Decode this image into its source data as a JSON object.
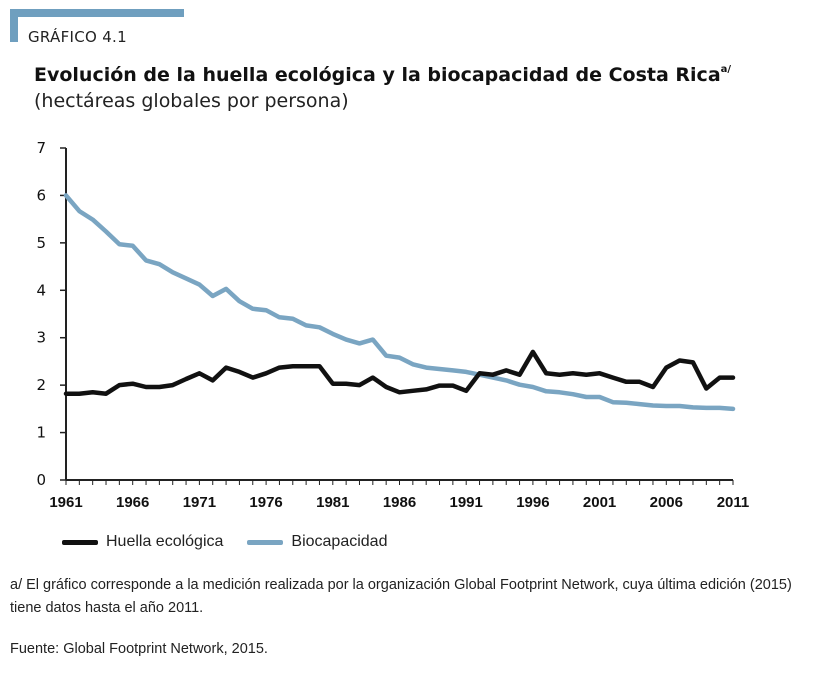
{
  "header": {
    "label": "GRÁFICO 4.1",
    "title": "Evolución de la huella ecológica y la biocapacidad de Costa Rica",
    "title_note": "a/",
    "subtitle": "(hectáreas globales por persona)"
  },
  "colors": {
    "accent": "#6f9fbf",
    "huella": "#111111",
    "biocapacidad": "#7aa5c2"
  },
  "chart_data": {
    "type": "line",
    "x": [
      1961,
      1962,
      1963,
      1964,
      1965,
      1966,
      1967,
      1968,
      1969,
      1970,
      1971,
      1972,
      1973,
      1974,
      1975,
      1976,
      1977,
      1978,
      1979,
      1980,
      1981,
      1982,
      1983,
      1984,
      1985,
      1986,
      1987,
      1988,
      1989,
      1990,
      1991,
      1992,
      1993,
      1994,
      1995,
      1996,
      1997,
      1998,
      1999,
      2000,
      2001,
      2002,
      2003,
      2004,
      2005,
      2006,
      2007,
      2008,
      2009,
      2010,
      2011
    ],
    "series": [
      {
        "name": "Huella ecológica",
        "values": [
          1.82,
          1.82,
          1.85,
          1.82,
          2.0,
          2.03,
          1.96,
          1.96,
          2.0,
          2.13,
          2.25,
          2.1,
          2.37,
          2.28,
          2.16,
          2.25,
          2.37,
          2.4,
          2.4,
          2.4,
          2.03,
          2.03,
          2.0,
          2.16,
          1.96,
          1.85,
          1.88,
          1.91,
          1.99,
          1.99,
          1.88,
          2.25,
          2.22,
          2.31,
          2.22,
          2.7,
          2.25,
          2.22,
          2.25,
          2.22,
          2.25,
          2.16,
          2.07,
          2.07,
          1.96,
          2.37,
          2.52,
          2.48,
          1.93,
          2.16,
          2.16
        ]
      },
      {
        "name": "Biocapacidad",
        "values": [
          6.0,
          5.67,
          5.49,
          5.24,
          4.97,
          4.94,
          4.63,
          4.55,
          4.38,
          4.25,
          4.12,
          3.88,
          4.03,
          3.77,
          3.61,
          3.58,
          3.43,
          3.4,
          3.26,
          3.22,
          3.08,
          2.96,
          2.88,
          2.96,
          2.62,
          2.58,
          2.44,
          2.37,
          2.34,
          2.31,
          2.28,
          2.22,
          2.16,
          2.1,
          2.01,
          1.96,
          1.87,
          1.85,
          1.81,
          1.75,
          1.75,
          1.64,
          1.63,
          1.6,
          1.57,
          1.56,
          1.56,
          1.53,
          1.52,
          1.52,
          1.5
        ]
      }
    ],
    "x_ticks": [
      "1961",
      "1966",
      "1971",
      "1976",
      "1981",
      "1986",
      "1991",
      "1996",
      "2001",
      "2006",
      "2011"
    ],
    "y_ticks": [
      "0",
      "1",
      "2",
      "3",
      "4",
      "5",
      "6",
      "7"
    ],
    "ylim": [
      0,
      7
    ],
    "xlim": [
      1961,
      2011
    ],
    "grid": false,
    "legend": "bottom"
  },
  "footer": {
    "note": "a/ El gráfico corresponde a la medición realizada por la organización Global Footprint Network, cuya última edición (2015) tiene datos hasta el año 2011.",
    "source": "Fuente: Global Footprint Network, 2015."
  }
}
